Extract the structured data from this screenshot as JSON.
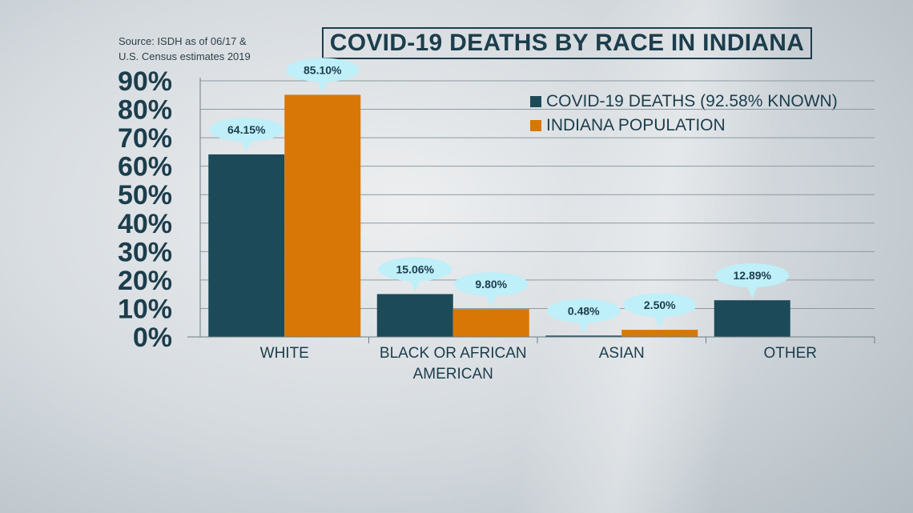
{
  "source": {
    "line1": "Source: ISDH as of 06/17 &",
    "line2": "U.S. Census estimates 2019"
  },
  "colors": {
    "deaths": "#1c4a59",
    "population": "#d87706",
    "callout": "#bfeff8",
    "text": "#1c3d4c"
  },
  "chart_data": {
    "type": "bar",
    "title": "COVID-19 DEATHS BY RACE IN INDIANA",
    "categories": [
      [
        "WHITE"
      ],
      [
        "BLACK OR AFRICAN",
        "AMERICAN"
      ],
      [
        "ASIAN"
      ],
      [
        "OTHER"
      ]
    ],
    "series": [
      {
        "name": "COVID-19 DEATHS (92.58% KNOWN)",
        "values": [
          64.15,
          15.06,
          0.48,
          12.89
        ],
        "labels": [
          "64.15%",
          "15.06%",
          "0.48%",
          "12.89%"
        ]
      },
      {
        "name": "INDIANA POPULATION",
        "values": [
          85.1,
          9.8,
          2.5,
          null
        ],
        "labels": [
          "85.10%",
          "9.80%",
          "2.50%",
          null
        ]
      }
    ],
    "yticks": [
      "0%",
      "10%",
      "20%",
      "30%",
      "40%",
      "50%",
      "60%",
      "70%",
      "80%",
      "90%"
    ],
    "ylim": [
      0,
      90
    ],
    "grid": true,
    "legend_position": "top-right"
  }
}
